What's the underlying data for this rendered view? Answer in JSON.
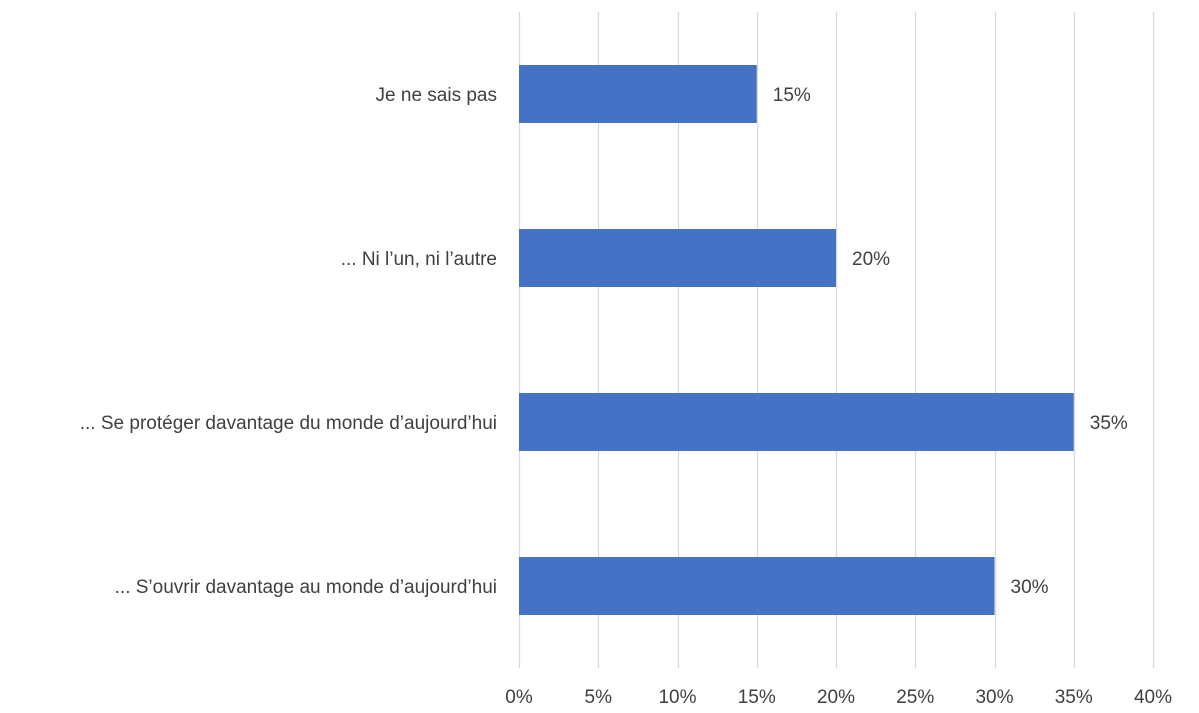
{
  "chart_data": {
    "type": "bar",
    "orientation": "horizontal",
    "categories": [
      "Je ne sais pas",
      "... Ni l’un, ni l’autre",
      "... Se protéger davantage du monde d’aujourd’hui",
      "... S’ouvrir davantage au monde d’aujourd’hui"
    ],
    "values": [
      15,
      20,
      35,
      30
    ],
    "value_labels": [
      "15%",
      "20%",
      "35%",
      "30%"
    ],
    "xlim": [
      0,
      40
    ],
    "xticks": [
      0,
      5,
      10,
      15,
      20,
      25,
      30,
      35,
      40
    ],
    "xtick_labels": [
      "0%",
      "5%",
      "10%",
      "15%",
      "20%",
      "25%",
      "30%",
      "35%",
      "40%"
    ],
    "grid": "vertical",
    "legend": "none",
    "bar_color": "#4472C4",
    "grid_color": "#D9D9D9",
    "text_color": "#404040"
  }
}
